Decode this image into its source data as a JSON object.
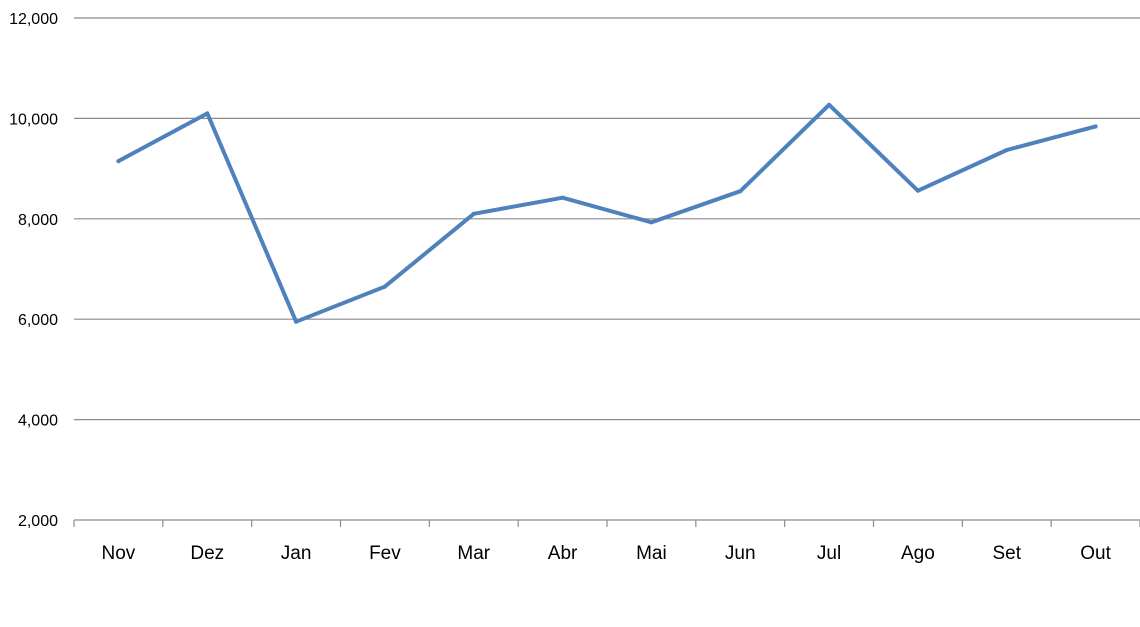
{
  "chart_data": {
    "type": "line",
    "title": "",
    "xlabel": "",
    "ylabel": "",
    "categories": [
      "Nov",
      "Dez",
      "Jan",
      "Fev",
      "Mar",
      "Abr",
      "Mai",
      "Jun",
      "Jul",
      "Ago",
      "Set",
      "Out"
    ],
    "series": [
      {
        "values": [
          9150,
          10100,
          5950,
          6650,
          8100,
          8420,
          7930,
          8550,
          10270,
          8560,
          9370,
          9840
        ],
        "color": "#4f81bd"
      }
    ],
    "ylim": [
      2000,
      12000
    ],
    "yticks": [
      2000,
      4000,
      6000,
      8000,
      10000,
      12000
    ],
    "ytick_labels": [
      "2,000",
      "4,000",
      "6,000",
      "8,000",
      "10,000",
      "12,000"
    ],
    "grid": true,
    "gridline_color": "#8c8c8c",
    "axis_color": "#8c8c8c",
    "legend": "none"
  }
}
